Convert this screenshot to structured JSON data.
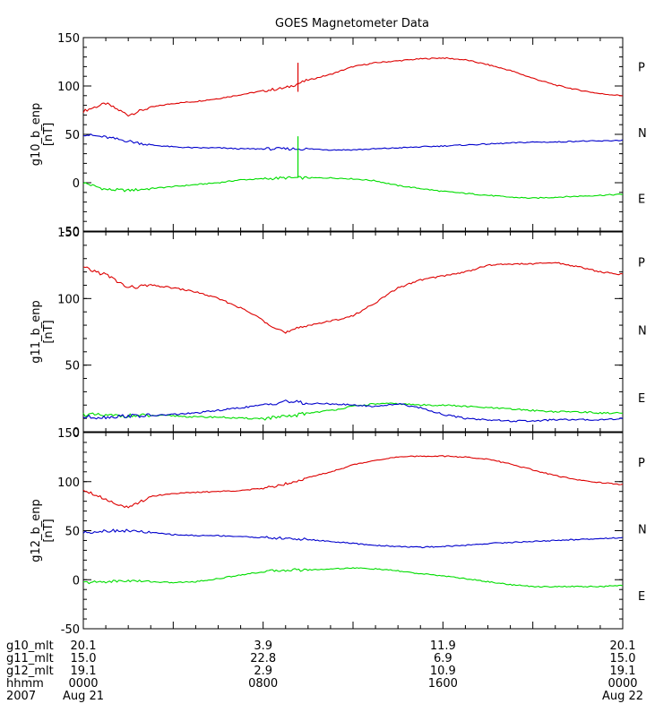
{
  "chart_data": {
    "type": "line",
    "title": "GOES Magnetometer Data",
    "x": [
      0,
      1,
      2,
      3,
      4,
      5,
      6,
      7,
      8,
      9,
      10,
      11,
      12,
      13,
      14,
      15,
      16,
      17,
      18,
      19,
      20,
      21,
      22,
      23,
      24
    ],
    "xlim": [
      0,
      24
    ],
    "colors": {
      "P": "#dd0000",
      "N": "#00dd00",
      "E": "#0000cc"
    },
    "component_labels": {
      "P": "P",
      "N": "N",
      "E": "E"
    },
    "panels": [
      {
        "ylabel": "g10_b_enp",
        "yunit": "[nT]",
        "ylim": [
          -50,
          150
        ],
        "yticks": [
          "150",
          "100",
          "50",
          "0",
          "-50"
        ],
        "series": [
          {
            "name": "P",
            "color": "#dd0000",
            "values": [
              74,
              82,
              70,
              78,
              82,
              84,
              87,
              91,
              95,
              98,
              106,
              112,
              120,
              124,
              126,
              128,
              129,
              127,
              122,
              116,
              108,
              101,
              96,
              92,
              90
            ]
          },
          {
            "name": "N",
            "color": "#00dd00",
            "values": [
              0,
              -7,
              -8,
              -6,
              -4,
              -2,
              0,
              3,
              4,
              5,
              5,
              5,
              4,
              2,
              -3,
              -6,
              -9,
              -11,
              -13,
              -15,
              -16,
              -15,
              -14,
              -13,
              -12
            ]
          },
          {
            "name": "E",
            "color": "#0000cc",
            "values": [
              50,
              47,
              43,
              39,
              37,
              36,
              36,
              35,
              35,
              35,
              35,
              34,
              34,
              35,
              36,
              37,
              38,
              39,
              40,
              41,
              42,
              42,
              43,
              43,
              44
            ]
          }
        ]
      },
      {
        "ylabel": "g11_b_enp",
        "yunit": "[nT]",
        "ylim": [
          0,
          150
        ],
        "yticks": [
          "150",
          "100",
          "50",
          "0"
        ],
        "series": [
          {
            "name": "P",
            "color": "#dd0000",
            "values": [
              123,
              118,
              108,
              110,
              108,
              105,
              100,
              93,
              84,
              74,
              80,
              83,
              87,
              97,
              108,
              114,
              117,
              120,
              125,
              126,
              126,
              127,
              124,
              120,
              118
            ]
          },
          {
            "name": "N",
            "color": "#00dd00",
            "values": [
              13,
              12,
              12,
              12,
              12,
              11,
              11,
              10,
              10,
              11,
              14,
              16,
              19,
              21,
              21,
              20,
              20,
              19,
              18,
              17,
              16,
              15,
              15,
              14,
              14
            ]
          },
          {
            "name": "E",
            "color": "#0000cc",
            "values": [
              11,
              11,
              12,
              12,
              13,
              14,
              16,
              18,
              20,
              23,
              21,
              21,
              20,
              19,
              21,
              18,
              13,
              10,
              9,
              8,
              8,
              9,
              9,
              9,
              10
            ]
          }
        ]
      },
      {
        "ylabel": "g12_b_enp",
        "yunit": "[nT]",
        "ylim": [
          -50,
          150
        ],
        "yticks": [
          "150",
          "100",
          "50",
          "0",
          "-50"
        ],
        "series": [
          {
            "name": "P",
            "color": "#dd0000",
            "values": [
              92,
              82,
              73,
              85,
              88,
              89,
              90,
              91,
              93,
              98,
              104,
              110,
              117,
              122,
              125,
              126,
              126,
              125,
              123,
              118,
              112,
              106,
              102,
              99,
              97
            ]
          },
          {
            "name": "N",
            "color": "#00dd00",
            "values": [
              -3,
              -2,
              -1,
              -2,
              -3,
              -2,
              1,
              5,
              8,
              10,
              10,
              11,
              12,
              11,
              9,
              6,
              4,
              1,
              -2,
              -5,
              -7,
              -7,
              -7,
              -7,
              -6
            ]
          },
          {
            "name": "E",
            "color": "#0000cc",
            "values": [
              48,
              50,
              50,
              48,
              46,
              45,
              45,
              44,
              43,
              42,
              41,
              39,
              37,
              35,
              34,
              33,
              34,
              35,
              37,
              38,
              39,
              40,
              41,
              42,
              43
            ]
          }
        ]
      }
    ],
    "footer": {
      "row_labels": [
        "g10_mlt",
        "g11_mlt",
        "g12_mlt",
        "hhmm",
        "2007"
      ],
      "columns": [
        {
          "x": 0,
          "values": [
            "20.1",
            "15.0",
            "19.1",
            "0000",
            "Aug 21"
          ]
        },
        {
          "x": 8,
          "values": [
            "3.9",
            "22.8",
            "2.9",
            "0800",
            ""
          ]
        },
        {
          "x": 16,
          "values": [
            "11.9",
            "6.9",
            "10.9",
            "1600",
            ""
          ]
        },
        {
          "x": 24,
          "values": [
            "20.1",
            "15.0",
            "19.1",
            "0000",
            "Aug 22"
          ]
        }
      ]
    }
  }
}
